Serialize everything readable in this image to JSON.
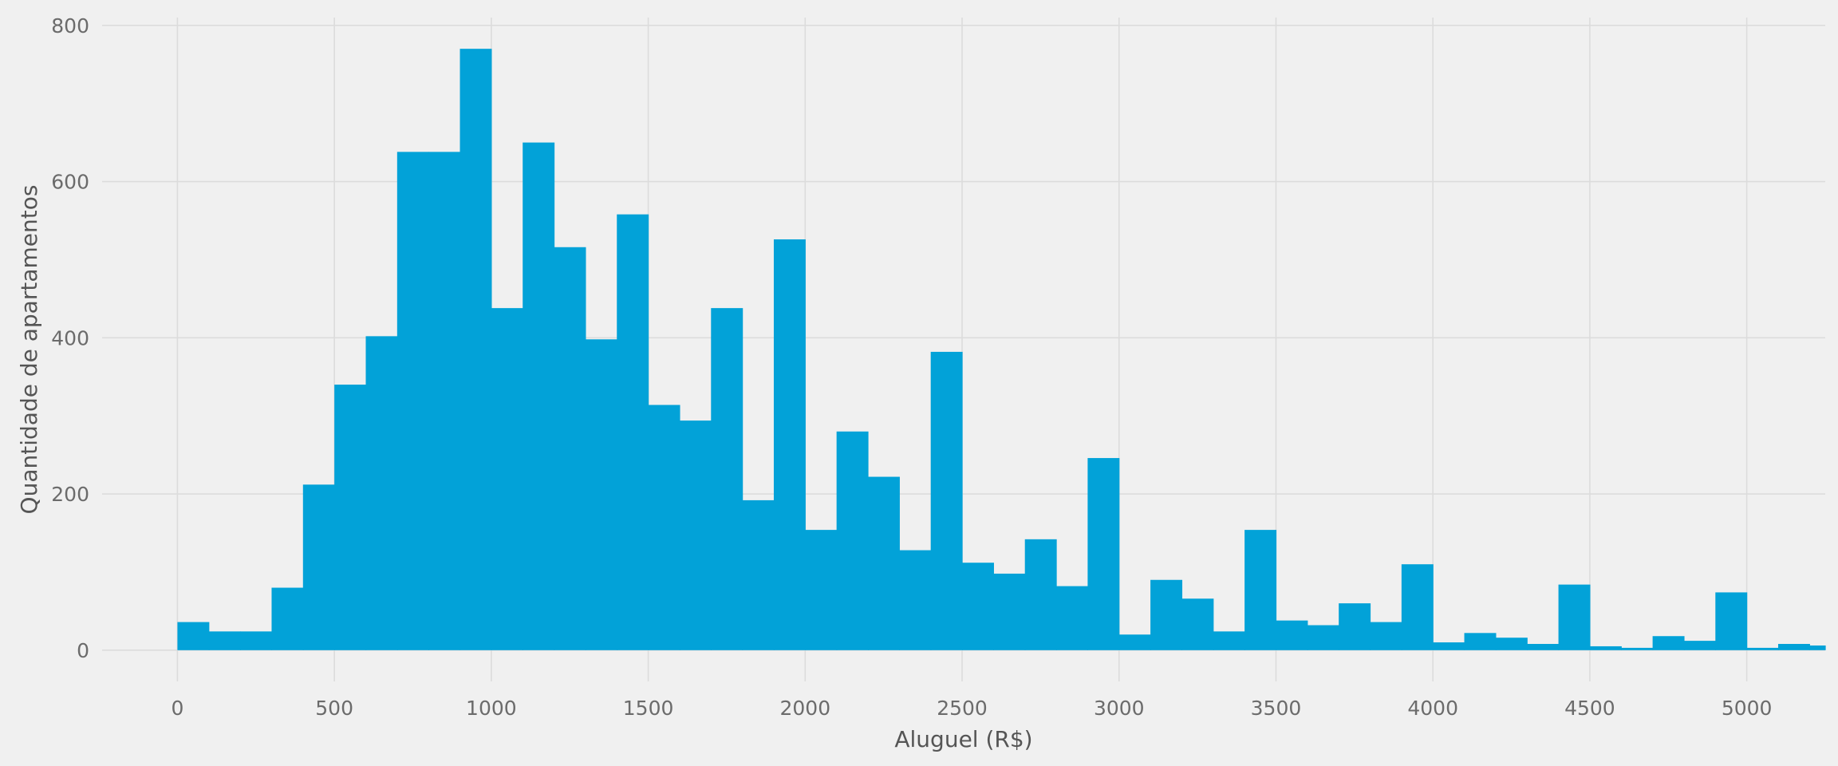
{
  "chart_data": {
    "type": "bar",
    "title": "",
    "xlabel": "Aluguel (R$)",
    "ylabel": "Quantidade de apartamentos",
    "xlim": [
      -240,
      5250
    ],
    "ylim": [
      -40,
      810
    ],
    "grid": true,
    "bar_color": "#02a2d8",
    "background": "#f0f0f0",
    "grid_color": "#dcdcdc",
    "bin_width": 100,
    "x_ticks": [
      0,
      500,
      1000,
      1500,
      2000,
      2500,
      3000,
      3500,
      4000,
      4500,
      5000
    ],
    "x_tick_labels": [
      "0",
      "500",
      "1000",
      "1500",
      "2000",
      "2500",
      "3000",
      "3500",
      "4000",
      "4500",
      "5000"
    ],
    "y_ticks": [
      0,
      200,
      400,
      600,
      800
    ],
    "y_tick_labels": [
      "0",
      "200",
      "400",
      "600",
      "800"
    ],
    "bin_starts": [
      0,
      100,
      200,
      300,
      400,
      500,
      600,
      700,
      800,
      900,
      1000,
      1100,
      1200,
      1300,
      1400,
      1500,
      1600,
      1700,
      1800,
      1900,
      2000,
      2100,
      2200,
      2300,
      2400,
      2500,
      2600,
      2700,
      2800,
      2900,
      3000,
      3100,
      3200,
      3300,
      3400,
      3500,
      3600,
      3700,
      3800,
      3900,
      4000,
      4100,
      4200,
      4300,
      4400,
      4500,
      4600,
      4700,
      4800,
      4900,
      5000,
      5100,
      5200
    ],
    "values": [
      36,
      24,
      24,
      80,
      212,
      340,
      402,
      638,
      638,
      770,
      438,
      650,
      516,
      398,
      558,
      314,
      294,
      438,
      192,
      526,
      154,
      280,
      222,
      128,
      382,
      112,
      98,
      142,
      82,
      246,
      20,
      90,
      66,
      24,
      154,
      38,
      32,
      60,
      36,
      110,
      10,
      22,
      16,
      8,
      84,
      5,
      3,
      18,
      12,
      74,
      3,
      8,
      6
    ]
  }
}
